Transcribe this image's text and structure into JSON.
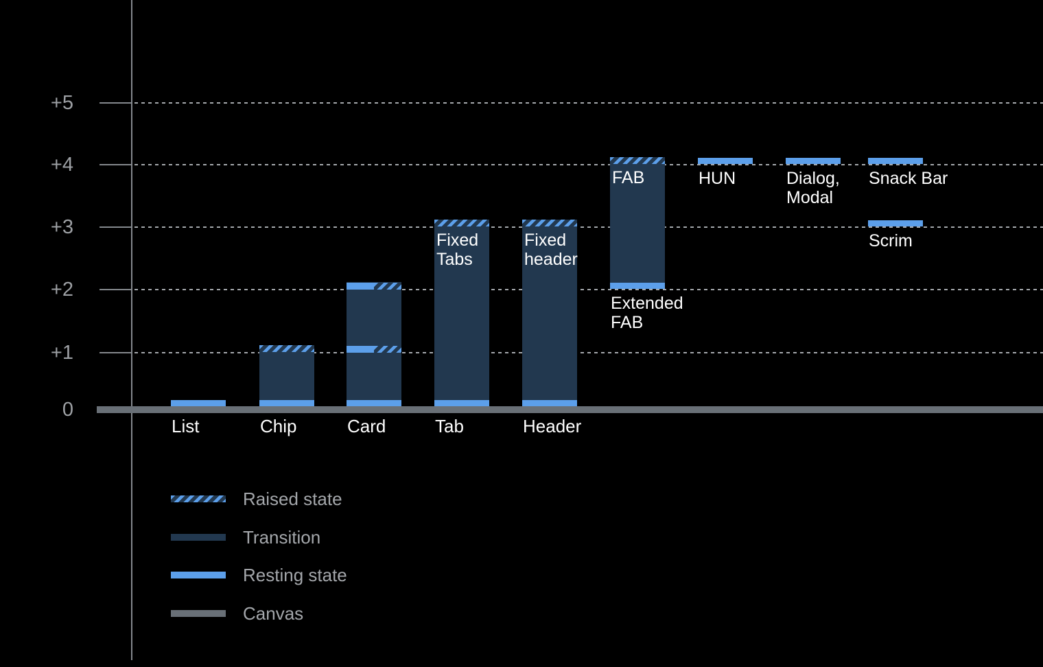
{
  "colors": {
    "background": "#000000",
    "resting_blue": "#5c9fea",
    "transition_navy": "#22384f",
    "canvas_gray": "#697077",
    "axis_gray": "#85898e",
    "grid_dot_gray": "#a6aaae",
    "y_label_gray": "#9da0a4",
    "legend_text_gray": "#a4a7ab",
    "label_white": "#ffffff"
  },
  "chart_data": {
    "type": "bar",
    "ylim": [
      0,
      5
    ],
    "y_tick_labels": [
      "0",
      "+1",
      "+2",
      "+3",
      "+4",
      "+5"
    ],
    "grid": "dotted horizontal gridlines at +1 through +5; solid thick canvas baseline at 0",
    "legend_position": "bottom-left",
    "legend_entries": [
      "Raised state",
      "Transition",
      "Resting state",
      "Canvas"
    ],
    "components": [
      {
        "name": "List",
        "resting": 0,
        "raised": null,
        "transition": null
      },
      {
        "name": "Chip",
        "resting": 0,
        "raised": 1,
        "transition": [
          0,
          1
        ]
      },
      {
        "name": "Card",
        "resting": 0,
        "raised": [
          1,
          2
        ],
        "resting_upper": [
          1,
          2
        ],
        "transition": [
          0,
          2
        ]
      },
      {
        "name": "Tab",
        "resting": 0,
        "raised": 3,
        "transition": [
          0,
          3
        ],
        "note": "Fixed Tabs"
      },
      {
        "name": "Header",
        "resting": 0,
        "raised": 3,
        "transition": [
          0,
          3
        ],
        "note": "Fixed header"
      },
      {
        "name": "Extended FAB",
        "resting": 2,
        "raised": 4,
        "transition": [
          2,
          4
        ],
        "note": "FAB"
      },
      {
        "name": "HUN",
        "resting": 4,
        "raised": null,
        "transition": null
      },
      {
        "name": "Dialog, Modal",
        "resting": 4,
        "raised": null,
        "transition": null
      },
      {
        "name": "Snack Bar",
        "resting": 4,
        "raised": null,
        "transition": null
      },
      {
        "name": "Scrim",
        "resting": 3,
        "raised": null,
        "transition": null
      }
    ]
  },
  "axis": {
    "ticks": [
      {
        "label": "+5",
        "level": 5
      },
      {
        "label": "+4",
        "level": 4
      },
      {
        "label": "+3",
        "level": 3
      },
      {
        "label": "+2",
        "level": 2
      },
      {
        "label": "+1",
        "level": 1
      },
      {
        "label": "0",
        "level": 0
      }
    ]
  },
  "bars": [
    {
      "key": "list",
      "col": 0,
      "axis_label": "List",
      "segments": [
        {
          "kind": "resting",
          "level": 0
        }
      ]
    },
    {
      "key": "chip",
      "col": 1,
      "axis_label": "Chip",
      "segments": [
        {
          "kind": "transition",
          "from": 0,
          "to": 1
        },
        {
          "kind": "raised",
          "level": 1
        },
        {
          "kind": "resting",
          "level": 0
        }
      ]
    },
    {
      "key": "card",
      "col": 2,
      "axis_label": "Card",
      "segments": [
        {
          "kind": "transition",
          "from": 0,
          "to": 2
        },
        {
          "kind": "split",
          "level": 2
        },
        {
          "kind": "split",
          "level": 1
        },
        {
          "kind": "resting",
          "level": 0
        }
      ]
    },
    {
      "key": "tab",
      "col": 3,
      "axis_label": "Tab",
      "inner_label": "Fixed\nTabs",
      "inner_at": 3,
      "segments": [
        {
          "kind": "transition",
          "from": 0,
          "to": 3
        },
        {
          "kind": "raised",
          "level": 3
        },
        {
          "kind": "resting",
          "level": 0
        }
      ]
    },
    {
      "key": "header",
      "col": 4,
      "axis_label": "Header",
      "inner_label": "Fixed\nheader",
      "inner_at": 3,
      "segments": [
        {
          "kind": "transition",
          "from": 0,
          "to": 3
        },
        {
          "kind": "raised",
          "level": 3
        },
        {
          "kind": "resting",
          "level": 0
        }
      ]
    },
    {
      "key": "fab",
      "col": 5,
      "inner_label": "FAB",
      "inner_at": 4,
      "below_label": "Extended\nFAB",
      "below_at": 2,
      "segments": [
        {
          "kind": "transition",
          "from": 2,
          "to": 4
        },
        {
          "kind": "raised",
          "level": 4
        },
        {
          "kind": "resting",
          "level": 2
        }
      ]
    },
    {
      "key": "hun",
      "col": 6,
      "below_label": "HUN",
      "below_at": 4,
      "segments": [
        {
          "kind": "resting",
          "level": 4
        }
      ]
    },
    {
      "key": "dialog-modal",
      "col": 7,
      "below_label": "Dialog,\nModal",
      "below_at": 4,
      "segments": [
        {
          "kind": "resting",
          "level": 4
        }
      ]
    },
    {
      "key": "snack-bar",
      "col": 8,
      "below_label": "Snack Bar",
      "below_at": 4,
      "segments": [
        {
          "kind": "resting",
          "level": 4
        }
      ]
    },
    {
      "key": "scrim",
      "col": 8,
      "below_label": "Scrim",
      "below_at": 3,
      "segments": [
        {
          "kind": "resting",
          "level": 3
        }
      ]
    }
  ],
  "legend": {
    "items": [
      {
        "swatch": "raised",
        "label": "Raised state"
      },
      {
        "swatch": "transition",
        "label": "Transition"
      },
      {
        "swatch": "resting",
        "label": "Resting state"
      },
      {
        "swatch": "canvas",
        "label": "Canvas"
      }
    ]
  }
}
